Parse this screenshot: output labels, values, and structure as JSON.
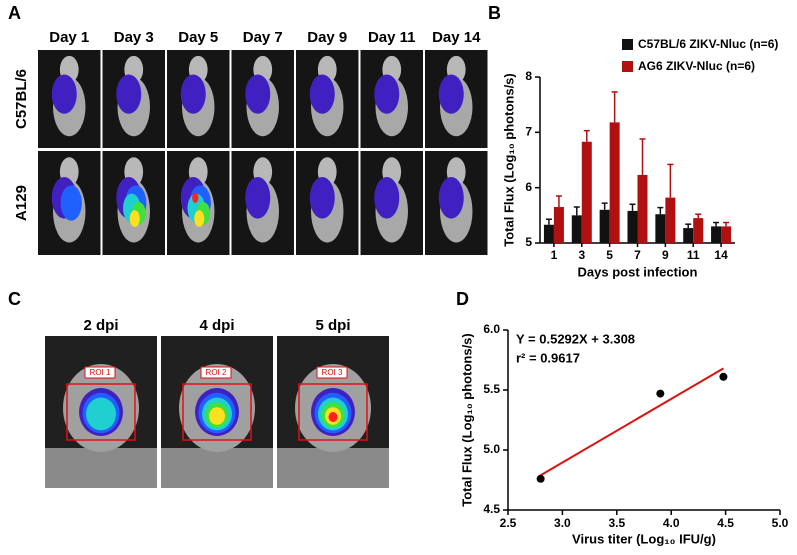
{
  "panel_a": {
    "label": "A",
    "columns": [
      "Day 1",
      "Day 3",
      "Day 5",
      "Day 7",
      "Day 9",
      "Day 11",
      "Day 14"
    ],
    "rows": [
      "C57BL/6",
      "A129"
    ]
  },
  "panel_c": {
    "label": "C",
    "columns": [
      "2 dpi",
      "4 dpi",
      "5 dpi"
    ],
    "rois": [
      "ROI 1",
      "ROI 2",
      "ROI 3"
    ]
  },
  "chart_data": [
    {
      "type": "bar",
      "panel": "B",
      "y_label": "Total Flux (Log₁₀ photons/s)",
      "x_label": "Days post infection",
      "categories": [
        "1",
        "3",
        "5",
        "7",
        "9",
        "11",
        "14"
      ],
      "series": [
        {
          "name": "C57BL/6 ZIKV-Nluc (n=6)",
          "color": "#111111",
          "values": [
            5.33,
            5.5,
            5.6,
            5.58,
            5.52,
            5.27,
            5.3
          ],
          "errors": [
            0.1,
            0.15,
            0.12,
            0.12,
            0.12,
            0.07,
            0.07
          ]
        },
        {
          "name": "AG6 ZIKV-Nluc (n=6)",
          "color": "#b01010",
          "values": [
            5.65,
            6.83,
            7.18,
            6.23,
            5.82,
            5.45,
            5.3
          ],
          "errors": [
            0.2,
            0.2,
            0.55,
            0.65,
            0.6,
            0.07,
            0.07
          ]
        }
      ],
      "ylim": [
        5,
        8
      ],
      "yticks": [
        5,
        6,
        7,
        8
      ]
    },
    {
      "type": "scatter",
      "panel": "D",
      "y_label": "Total Flux (Log₁₀ photons/s)",
      "x_label": "Virus titer (Log₁₀ IFU/g)",
      "annotations": [
        "Y = 0.5292X + 3.308",
        "r² = 0.9617"
      ],
      "points": {
        "color": "#000000",
        "x": [
          2.8,
          3.9,
          4.48
        ],
        "values": [
          4.76,
          5.47,
          5.61
        ]
      },
      "fit": {
        "color": "#e01010",
        "x": [
          2.8,
          4.48
        ],
        "values": [
          4.79,
          5.68
        ]
      },
      "xlim": [
        2.5,
        5
      ],
      "xticks": [
        2.5,
        {
          "value": 3,
          "label": "3.0"
        },
        3.5,
        {
          "value": 4,
          "label": "4.0"
        },
        4.5,
        {
          "value": 5,
          "label": "5.0"
        }
      ],
      "ylim": [
        4.5,
        6
      ],
      "yticks": [
        4.5,
        {
          "value": 5,
          "label": "5.0"
        },
        5.5,
        {
          "value": 6,
          "label": "6.0"
        }
      ]
    }
  ]
}
